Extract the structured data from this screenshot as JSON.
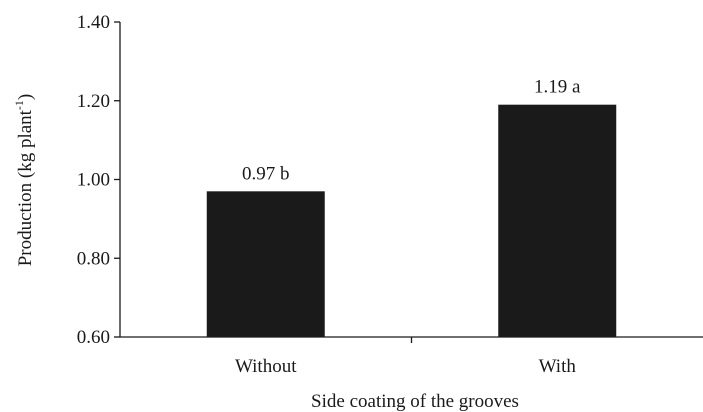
{
  "chart_data": {
    "type": "bar",
    "categories": [
      "Without",
      "With"
    ],
    "values": [
      0.97,
      1.19
    ],
    "data_labels": [
      "0.97 b",
      "1.19 a"
    ],
    "title": "",
    "xlabel": "Side coating  of the grooves",
    "ylabel": {
      "main": "Production  (kg plant",
      "superscript": "-1",
      "close": ")"
    },
    "ylim": [
      0.6,
      1.4
    ],
    "yticks": [
      0.6,
      0.8,
      1.0,
      1.2,
      1.4
    ],
    "ytick_labels": [
      "0.60",
      "0.80",
      "1.00",
      "1.20",
      "1.40"
    ],
    "grid": false,
    "legend": "none",
    "bar_color": "#1a1a1a",
    "axis_color": "#1a1a1a"
  }
}
